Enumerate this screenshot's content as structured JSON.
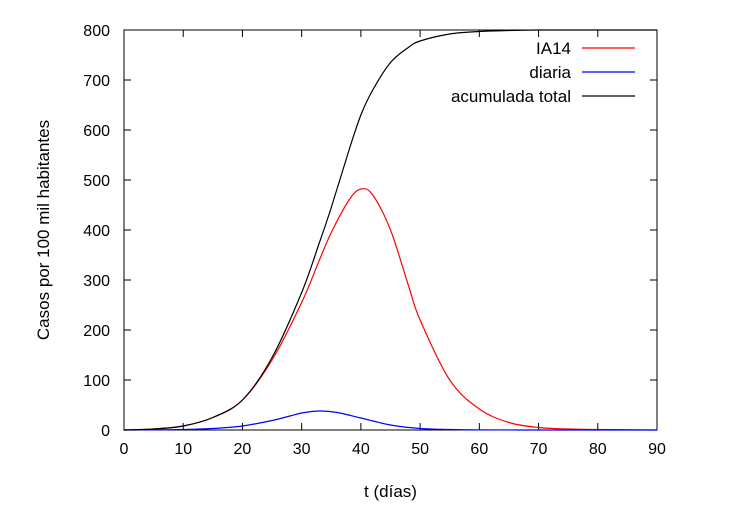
{
  "chart_data": {
    "type": "line",
    "title": "",
    "xlabel": "t (días)",
    "ylabel": "Casos por 100 mil habitantes",
    "xlim": [
      0,
      90
    ],
    "ylim": [
      0,
      800
    ],
    "xticks": [
      0,
      10,
      20,
      30,
      40,
      50,
      60,
      70,
      80,
      90
    ],
    "yticks": [
      0,
      100,
      200,
      300,
      400,
      500,
      600,
      700,
      800
    ],
    "grid": false,
    "legend_position": "top-right",
    "series": [
      {
        "name": "IA14",
        "color": "#ff0000",
        "x": [
          0,
          5,
          10,
          15,
          20,
          25,
          30,
          33,
          35,
          38,
          40,
          42,
          45,
          48,
          50,
          55,
          60,
          65,
          70,
          75,
          80,
          90
        ],
        "y": [
          0,
          2,
          8,
          25,
          60,
          140,
          255,
          340,
          395,
          460,
          482,
          470,
          400,
          290,
          220,
          100,
          42,
          15,
          5,
          2,
          1,
          0
        ]
      },
      {
        "name": "diaria",
        "color": "#0000ff",
        "x": [
          0,
          5,
          10,
          15,
          20,
          25,
          28,
          30,
          33,
          36,
          40,
          45,
          50,
          55,
          60,
          70,
          80,
          90
        ],
        "y": [
          0,
          0.3,
          1,
          3,
          8,
          19,
          28,
          34,
          38,
          35,
          24,
          10,
          3,
          1,
          0.3,
          0,
          0,
          0
        ]
      },
      {
        "name": "acumulada total",
        "color": "#000000",
        "x": [
          0,
          5,
          10,
          15,
          20,
          25,
          30,
          33,
          35,
          38,
          40,
          42,
          45,
          48,
          50,
          55,
          60,
          65,
          70,
          75,
          80,
          90
        ],
        "y": [
          0,
          2,
          8,
          25,
          60,
          145,
          275,
          375,
          445,
          560,
          630,
          680,
          735,
          765,
          778,
          792,
          797,
          799,
          800,
          800,
          800,
          800
        ]
      }
    ]
  }
}
